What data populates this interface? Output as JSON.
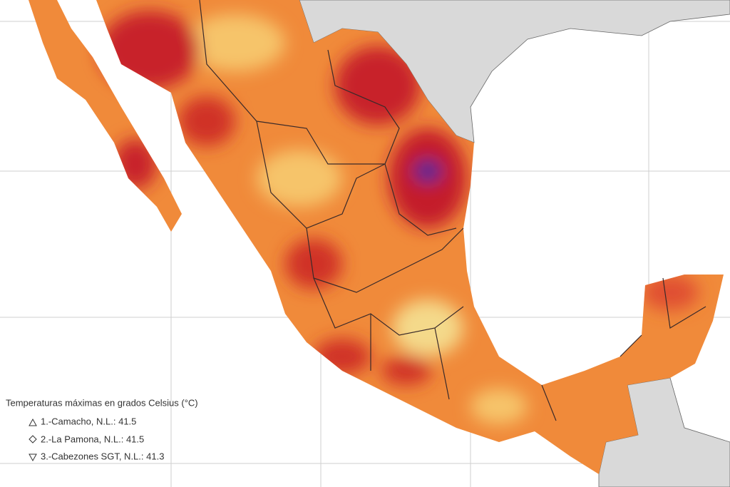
{
  "legend": {
    "title": "Temperaturas máximas en grados Celsius (°C)",
    "entries": [
      "1.-Camacho, N.L.: 41.5",
      "2.-La Pamona, N.L.: 41.5",
      "3.-Cabezones SGT, N.L.: 41.3"
    ]
  }
}
